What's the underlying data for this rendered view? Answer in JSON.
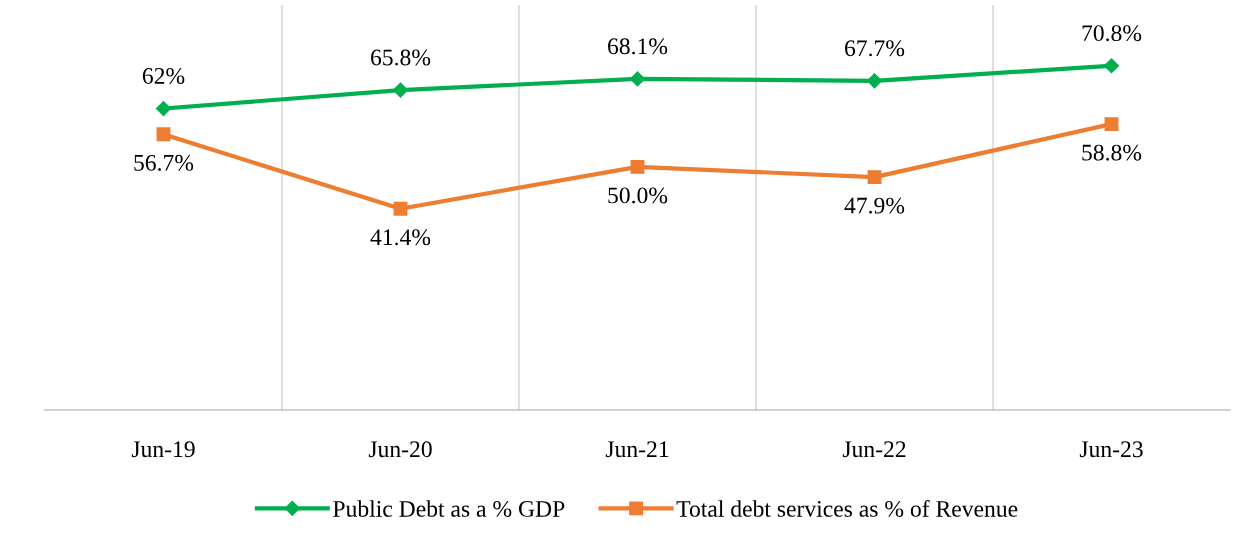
{
  "chart_data": {
    "type": "line",
    "categories": [
      "Jun-19",
      "Jun-20",
      "Jun-21",
      "Jun-22",
      "Jun-23"
    ],
    "series": [
      {
        "name": "Public Debt as a % GDP",
        "color": "#00b050",
        "marker": "diamond",
        "values": [
          62,
          65.8,
          68.1,
          67.7,
          70.8
        ],
        "value_labels": [
          "62%",
          "65.8%",
          "68.1%",
          "67.7%",
          "70.8%"
        ]
      },
      {
        "name": "Total debt services as % of Revenue",
        "color": "#ed7d31",
        "marker": "square",
        "values": [
          56.7,
          41.4,
          50.0,
          47.9,
          58.8
        ],
        "value_labels": [
          "56.7%",
          "41.4%",
          "50.0%",
          "47.9%",
          "58.8%"
        ]
      }
    ],
    "grid": "x",
    "legend": "bottom",
    "line_style": "solid"
  }
}
